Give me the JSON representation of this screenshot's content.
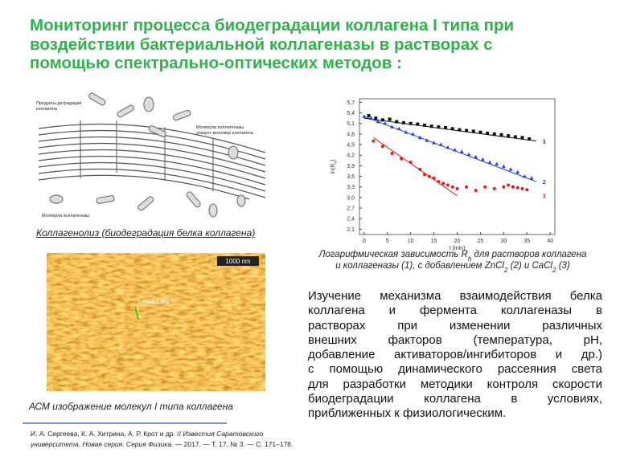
{
  "title": [
    "Мониторинг процесса биодеградации коллагена I типа при",
    "воздействии бактериальной коллагеназы в растворах с",
    "помощью спектрально-оптических методов :"
  ],
  "figure_collagenolysis": {
    "labels": [
      [
        "Продукты деградации",
        "коллагена"
      ],
      [
        "Молекула коллагеназы",
        "атакует мономер коллагена"
      ],
      [
        "Молекула коллагеназы"
      ]
    ],
    "caption": "Коллагенолиз (биодеградация белка коллагена)"
  },
  "figure_afm": {
    "labels": [
      "1000 nm",
      "L=344.3 nm"
    ],
    "caption": "АСМ изображение молекул  I типа коллагена"
  },
  "chart_data": {
    "type": "scatter",
    "ylabel": [
      "ln(R",
      "h",
      ")"
    ],
    "xlabel": "t (min)",
    "xlim": [
      -1,
      41
    ],
    "xticks": [
      0,
      5,
      10,
      15,
      20,
      25,
      30,
      35,
      40
    ],
    "ylim": [
      1.95,
      5.8
    ],
    "yticks": [
      {
        "value": 2.1,
        "label": "2,1"
      },
      {
        "value": 2.4,
        "label": "2,4"
      },
      {
        "value": 2.7,
        "label": "2,7"
      },
      {
        "value": 3.0,
        "label": "3,0"
      },
      {
        "value": 3.3,
        "label": "3,3"
      },
      {
        "value": 3.6,
        "label": "3,6"
      },
      {
        "value": 3.9,
        "label": "3,9"
      },
      {
        "value": 4.2,
        "label": "4,2"
      },
      {
        "value": 4.5,
        "label": "4,5"
      },
      {
        "value": 4.8,
        "label": "4,8"
      },
      {
        "value": 5.1,
        "label": "5,1"
      },
      {
        "value": 5.4,
        "label": "5,4"
      },
      {
        "value": 5.7,
        "label": "5,7"
      }
    ],
    "series": [
      {
        "name": "1",
        "color": "#111111",
        "marker": "square",
        "x": [
          1,
          2.5,
          4,
          5.5,
          7,
          8.5,
          10,
          11.5,
          13,
          14.5,
          16,
          17.5,
          19,
          20.5,
          22,
          23.5,
          25,
          26.5,
          28,
          29.5,
          31,
          32.5,
          34,
          35.5
        ],
        "values": [
          5.32,
          5.25,
          5.2,
          5.22,
          5.15,
          5.12,
          5.1,
          5.08,
          5.05,
          5.02,
          5.0,
          4.98,
          4.95,
          4.92,
          4.9,
          4.88,
          4.85,
          4.82,
          4.8,
          4.78,
          4.75,
          4.72,
          4.7,
          4.66
        ],
        "fit": {
          "x": [
            0,
            37
          ],
          "y": [
            5.25,
            4.6
          ]
        }
      },
      {
        "name": "2",
        "color": "#1f3fe0",
        "marker": "triangle",
        "x": [
          0,
          1.5,
          3,
          4.5,
          6,
          7.5,
          9,
          10.5,
          12,
          13.5,
          15,
          16.5,
          18,
          19.5,
          21,
          22.5,
          24,
          25.5,
          27,
          28.5,
          30,
          31.5,
          33,
          34.5,
          36
        ],
        "values": [
          5.3,
          5.25,
          5.15,
          5.1,
          5.0,
          4.95,
          4.85,
          4.8,
          4.7,
          4.62,
          4.55,
          4.5,
          4.42,
          4.35,
          4.3,
          4.22,
          4.15,
          4.08,
          4.0,
          3.95,
          3.88,
          3.8,
          3.72,
          3.6,
          3.55
        ],
        "fit": {
          "x": [
            0,
            37
          ],
          "y": [
            5.3,
            3.45
          ]
        }
      },
      {
        "name": "3",
        "color": "#e8191c",
        "marker": "circle",
        "x": [
          2,
          4,
          6,
          8,
          10,
          12,
          13,
          14,
          15,
          16,
          17,
          18,
          19,
          20,
          22,
          24,
          26,
          28,
          30,
          31,
          32,
          33,
          34,
          35
        ],
        "values": [
          4.6,
          4.45,
          4.25,
          4.1,
          4.0,
          3.8,
          3.65,
          3.6,
          3.55,
          3.45,
          3.4,
          3.35,
          3.3,
          3.25,
          3.3,
          3.2,
          3.3,
          3.25,
          3.3,
          3.35,
          3.3,
          3.28,
          3.25,
          3.22
        ],
        "fit": {
          "x": [
            2,
            20
          ],
          "y": [
            4.7,
            3.05
          ]
        }
      }
    ],
    "caption": [
      [
        "Логарифмическая зависимость R",
        "h",
        " для растворов коллагена"
      ],
      [
        "и коллагеназы (1),  с добавлением  ZnCl",
        "2",
        " (2) и CaCl",
        "2",
        " (3)"
      ]
    ]
  },
  "paragraph": [
    "Изучение механизма взаимодействия белка",
    "коллагена и фермента коллагеназы в",
    "растворах при изменении различных",
    "внешних факторов (температура, pH,",
    "добавление активаторов/ингибиторов и др.)",
    "с помощью динамического рассеяния света",
    "для разработки методики контроля скорости",
    "биодеградации коллагена в условиях,",
    "приближенных к физиологическим."
  ],
  "reference": [
    [
      "И. А. Сергеева, К. А. Хитрина, А. Р. Крот и др. // ",
      "Известия Саратовского"
    ],
    [
      "университета. Новая серия. Серия Физика.",
      " — 2017. — Т. 17, № 3. — С. 171–178."
    ]
  ]
}
